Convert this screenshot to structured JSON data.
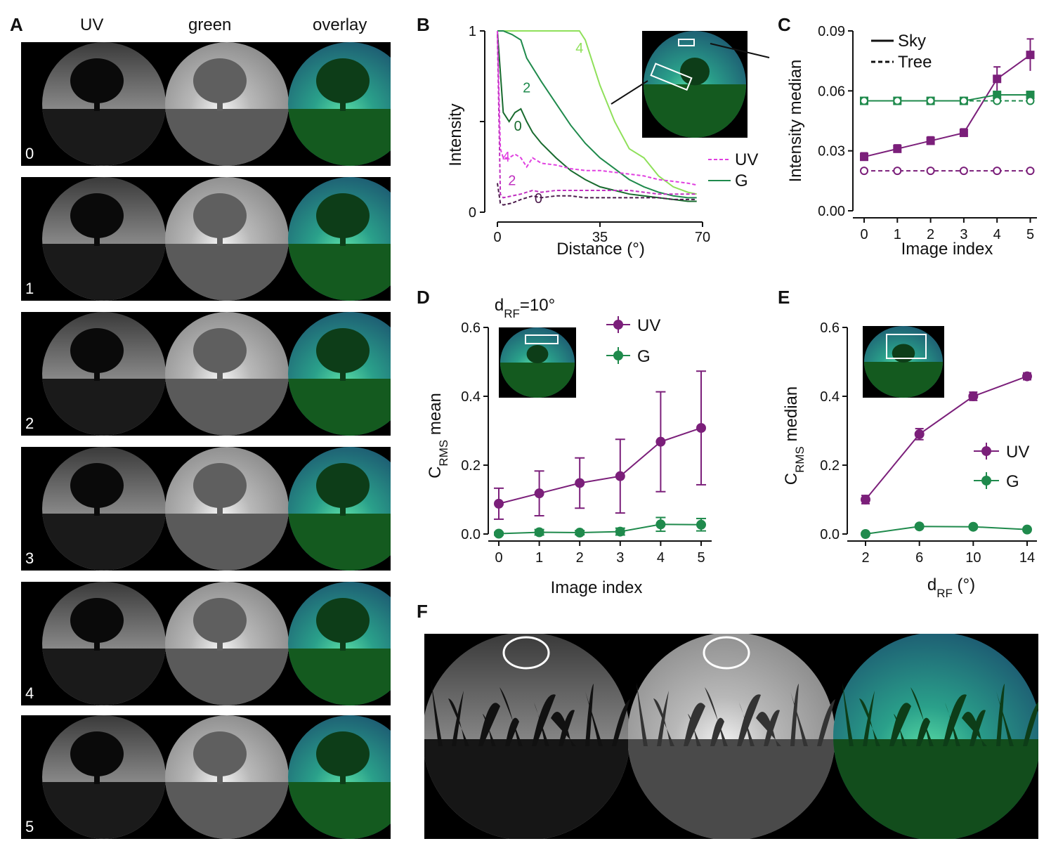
{
  "panels": {
    "A": {
      "label": "A",
      "columns": [
        "UV",
        "green",
        "overlay"
      ],
      "rows": [
        "0",
        "1",
        "2",
        "3",
        "4",
        "5"
      ]
    },
    "B": {
      "label": "B"
    },
    "C": {
      "label": "C"
    },
    "D": {
      "label": "D",
      "annotation_main": "d",
      "annotation_sub": "RF",
      "annotation_tail": "=10°"
    },
    "E": {
      "label": "E"
    },
    "F": {
      "label": "F"
    }
  },
  "colors": {
    "uv": "#7b1f7a",
    "g": "#1f8a4c",
    "uv_light": "#e040e0",
    "g_light": "#8fe05a",
    "g_dark": "#186a2e"
  },
  "chart_data": [
    {
      "id": "B",
      "type": "line",
      "xlabel": "Distance (°)",
      "ylabel": "Intensity",
      "xlim": [
        0,
        70
      ],
      "ylim": [
        0,
        1
      ],
      "xticks": [
        "0",
        "35",
        "70"
      ],
      "yticks": [
        "0",
        "1"
      ],
      "legend": [
        "UV",
        "G"
      ],
      "series": [
        {
          "name": "G 4",
          "label": "4",
          "x": [
            0,
            5,
            10,
            15,
            20,
            25,
            28,
            30,
            35,
            40,
            45,
            50,
            55,
            60,
            65,
            68
          ],
          "y": [
            1,
            1,
            1,
            1,
            1,
            1,
            1,
            0.95,
            0.7,
            0.5,
            0.35,
            0.3,
            0.2,
            0.14,
            0.11,
            0.1
          ]
        },
        {
          "name": "G 2",
          "label": "2",
          "x": [
            0,
            2,
            5,
            8,
            10,
            15,
            20,
            25,
            30,
            35,
            40,
            45,
            50,
            55,
            60,
            65,
            68
          ],
          "y": [
            1,
            1,
            0.98,
            0.95,
            0.85,
            0.72,
            0.6,
            0.48,
            0.38,
            0.3,
            0.24,
            0.18,
            0.14,
            0.11,
            0.09,
            0.08,
            0.08
          ]
        },
        {
          "name": "G 0",
          "label": "0",
          "x": [
            0,
            2,
            4,
            6,
            8,
            10,
            12,
            15,
            20,
            25,
            30,
            35,
            40,
            45,
            50,
            55,
            60,
            65,
            68
          ],
          "y": [
            1,
            0.55,
            0.5,
            0.55,
            0.57,
            0.5,
            0.44,
            0.38,
            0.3,
            0.23,
            0.18,
            0.14,
            0.12,
            0.1,
            0.09,
            0.08,
            0.07,
            0.06,
            0.06
          ]
        },
        {
          "name": "UV 4",
          "label": "4",
          "x": [
            0,
            1,
            2,
            4,
            6,
            8,
            10,
            12,
            15,
            20,
            25,
            30,
            35,
            40,
            45,
            50,
            55,
            60,
            65,
            68
          ],
          "y": [
            1,
            0.35,
            0.3,
            0.3,
            0.32,
            0.3,
            0.25,
            0.3,
            0.27,
            0.26,
            0.24,
            0.23,
            0.23,
            0.22,
            0.21,
            0.2,
            0.18,
            0.17,
            0.16,
            0.15
          ]
        },
        {
          "name": "UV 2",
          "label": "2",
          "x": [
            0,
            1,
            2,
            5,
            8,
            10,
            12,
            15,
            20,
            25,
            30,
            35,
            40,
            45,
            50,
            55,
            60,
            65,
            68
          ],
          "y": [
            0.98,
            0.1,
            0.08,
            0.09,
            0.1,
            0.11,
            0.12,
            0.11,
            0.12,
            0.12,
            0.12,
            0.12,
            0.12,
            0.12,
            0.11,
            0.1,
            0.1,
            0.1,
            0.1
          ]
        },
        {
          "name": "UV 0",
          "label": "0",
          "x": [
            0,
            1,
            2,
            5,
            8,
            10,
            12,
            15,
            20,
            25,
            30,
            35,
            40,
            45,
            50,
            55,
            60,
            65,
            68
          ],
          "y": [
            0.16,
            0.05,
            0.04,
            0.05,
            0.07,
            0.08,
            0.09,
            0.08,
            0.09,
            0.09,
            0.08,
            0.08,
            0.08,
            0.08,
            0.08,
            0.08,
            0.07,
            0.07,
            0.07
          ]
        }
      ]
    },
    {
      "id": "C",
      "type": "line",
      "xlabel": "Image index",
      "ylabel": "Intensity median",
      "x": [
        0,
        1,
        2,
        3,
        4,
        5
      ],
      "xticks": [
        "0",
        "1",
        "2",
        "3",
        "4",
        "5"
      ],
      "ylim": [
        0,
        0.09
      ],
      "yticks": [
        "0.00",
        "0.03",
        "0.06",
        "0.09"
      ],
      "legend": [
        "Sky",
        "Tree"
      ],
      "series": [
        {
          "name": "UV Sky",
          "values": [
            0.027,
            0.031,
            0.035,
            0.039,
            0.066,
            0.078
          ],
          "err": [
            0.002,
            0.002,
            0.002,
            0.002,
            0.006,
            0.008
          ]
        },
        {
          "name": "G Sky",
          "values": [
            0.055,
            0.055,
            0.055,
            0.055,
            0.058,
            0.058
          ],
          "err": [
            0,
            0,
            0,
            0,
            0,
            0
          ]
        },
        {
          "name": "UV Tree",
          "values": [
            0.02,
            0.02,
            0.02,
            0.02,
            0.02,
            0.02
          ],
          "err": [
            0,
            0,
            0,
            0,
            0,
            0
          ]
        },
        {
          "name": "G Tree",
          "values": [
            0.055,
            0.055,
            0.055,
            0.055,
            0.055,
            0.055
          ],
          "err": [
            0,
            0,
            0,
            0,
            0,
            0
          ]
        }
      ]
    },
    {
      "id": "D",
      "type": "line",
      "xlabel": "Image index",
      "ylabel_main": "C",
      "ylabel_sub": "RMS",
      "ylabel_tail": " mean",
      "x": [
        0,
        1,
        2,
        3,
        4,
        5
      ],
      "xticks": [
        "0",
        "1",
        "2",
        "3",
        "4",
        "5"
      ],
      "ylim": [
        0,
        0.6
      ],
      "yticks": [
        "0.0",
        "0.2",
        "0.4",
        "0.6"
      ],
      "legend": [
        "UV",
        "G"
      ],
      "series": [
        {
          "name": "UV",
          "values": [
            0.088,
            0.118,
            0.148,
            0.168,
            0.268,
            0.308
          ],
          "err": [
            0.045,
            0.065,
            0.073,
            0.107,
            0.145,
            0.165
          ]
        },
        {
          "name": "G",
          "values": [
            0.001,
            0.005,
            0.004,
            0.007,
            0.028,
            0.027
          ],
          "err": [
            0.004,
            0.008,
            0.006,
            0.01,
            0.02,
            0.018
          ]
        }
      ]
    },
    {
      "id": "E",
      "type": "line",
      "xlabel_main": "d",
      "xlabel_sub": "RF",
      "xlabel_tail": " (°)",
      "ylabel_main": "C",
      "ylabel_sub": "RMS",
      "ylabel_tail": " median",
      "x": [
        2,
        6,
        10,
        14
      ],
      "xticks": [
        "2",
        "6",
        "10",
        "14"
      ],
      "ylim": [
        0,
        0.6
      ],
      "yticks": [
        "0.0",
        "0.2",
        "0.4",
        "0.6"
      ],
      "legend": [
        "UV",
        "G"
      ],
      "series": [
        {
          "name": "UV",
          "values": [
            0.1,
            0.29,
            0.4,
            0.458
          ],
          "err": [
            0.012,
            0.016,
            0.012,
            0.01
          ]
        },
        {
          "name": "G",
          "values": [
            0.0,
            0.022,
            0.021,
            0.013
          ],
          "err": [
            0,
            0,
            0,
            0
          ]
        }
      ]
    }
  ]
}
